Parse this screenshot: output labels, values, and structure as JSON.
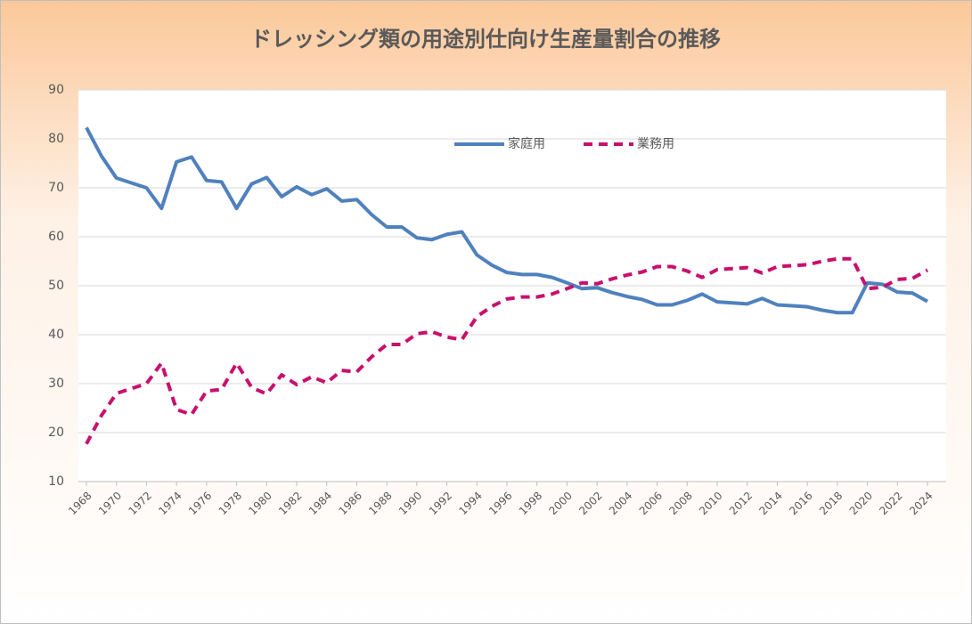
{
  "chart_data": {
    "type": "line",
    "title": "ドレッシング類の用途別仕向け生産量割合の推移",
    "x": [
      1968,
      1969,
      1970,
      1971,
      1972,
      1973,
      1974,
      1975,
      1976,
      1977,
      1978,
      1979,
      1980,
      1981,
      1982,
      1983,
      1984,
      1985,
      1986,
      1987,
      1988,
      1989,
      1990,
      1991,
      1992,
      1993,
      1994,
      1995,
      1996,
      1997,
      1998,
      1999,
      2000,
      2001,
      2002,
      2003,
      2004,
      2005,
      2006,
      2007,
      2008,
      2009,
      2010,
      2011,
      2012,
      2013,
      2014,
      2015,
      2016,
      2017,
      2018,
      2019,
      2020,
      2021,
      2022,
      2023,
      2024
    ],
    "series": [
      {
        "name": "家庭用",
        "color": "#4f81bd",
        "dash": false,
        "values": [
          82.3,
          76.5,
          72,
          71,
          70,
          65.8,
          75.3,
          76.3,
          71.5,
          71.2,
          65.8,
          70.8,
          72.1,
          68.2,
          70.2,
          68.6,
          69.8,
          67.3,
          67.6,
          64.5,
          62,
          62,
          59.8,
          59.4,
          60.5,
          61,
          56.3,
          54.2,
          52.7,
          52.3,
          52.3,
          51.7,
          50.6,
          49.4,
          49.6,
          48.6,
          47.8,
          47.2,
          46.1,
          46.1,
          47,
          48.3,
          46.7,
          46.5,
          46.3,
          47.4,
          46.1,
          45.9,
          45.7,
          45,
          44.5,
          44.5,
          50.6,
          50.3,
          48.7,
          48.5,
          46.8
        ]
      },
      {
        "name": "業務用",
        "color": "#c8106e",
        "dash": true,
        "values": [
          17.7,
          23.5,
          28,
          29,
          30,
          34.2,
          24.7,
          23.7,
          28.5,
          28.8,
          34.2,
          29.2,
          27.9,
          31.8,
          29.8,
          31.4,
          30.2,
          32.7,
          32.4,
          35.5,
          38,
          38,
          40.2,
          40.6,
          39.5,
          39,
          43.7,
          45.8,
          47.3,
          47.7,
          47.7,
          48.3,
          49.4,
          50.6,
          50.4,
          51.4,
          52.2,
          52.8,
          53.9,
          53.9,
          53,
          51.7,
          53.3,
          53.5,
          53.7,
          52.6,
          53.9,
          54.1,
          54.3,
          55,
          55.5,
          55.5,
          49.4,
          49.7,
          51.3,
          51.5,
          53.2
        ]
      }
    ],
    "xlim": [
      1968,
      2024
    ],
    "xticks": [
      1968,
      1970,
      1972,
      1974,
      1976,
      1978,
      1980,
      1982,
      1984,
      1986,
      1988,
      1990,
      1992,
      1994,
      1996,
      1998,
      2000,
      2002,
      2004,
      2006,
      2008,
      2010,
      2012,
      2014,
      2016,
      2018,
      2020,
      2022,
      2024
    ],
    "ylim": [
      10,
      90
    ],
    "yticks": [
      10,
      20,
      30,
      40,
      50,
      60,
      70,
      80,
      90
    ],
    "grid": true,
    "legend": "top"
  }
}
